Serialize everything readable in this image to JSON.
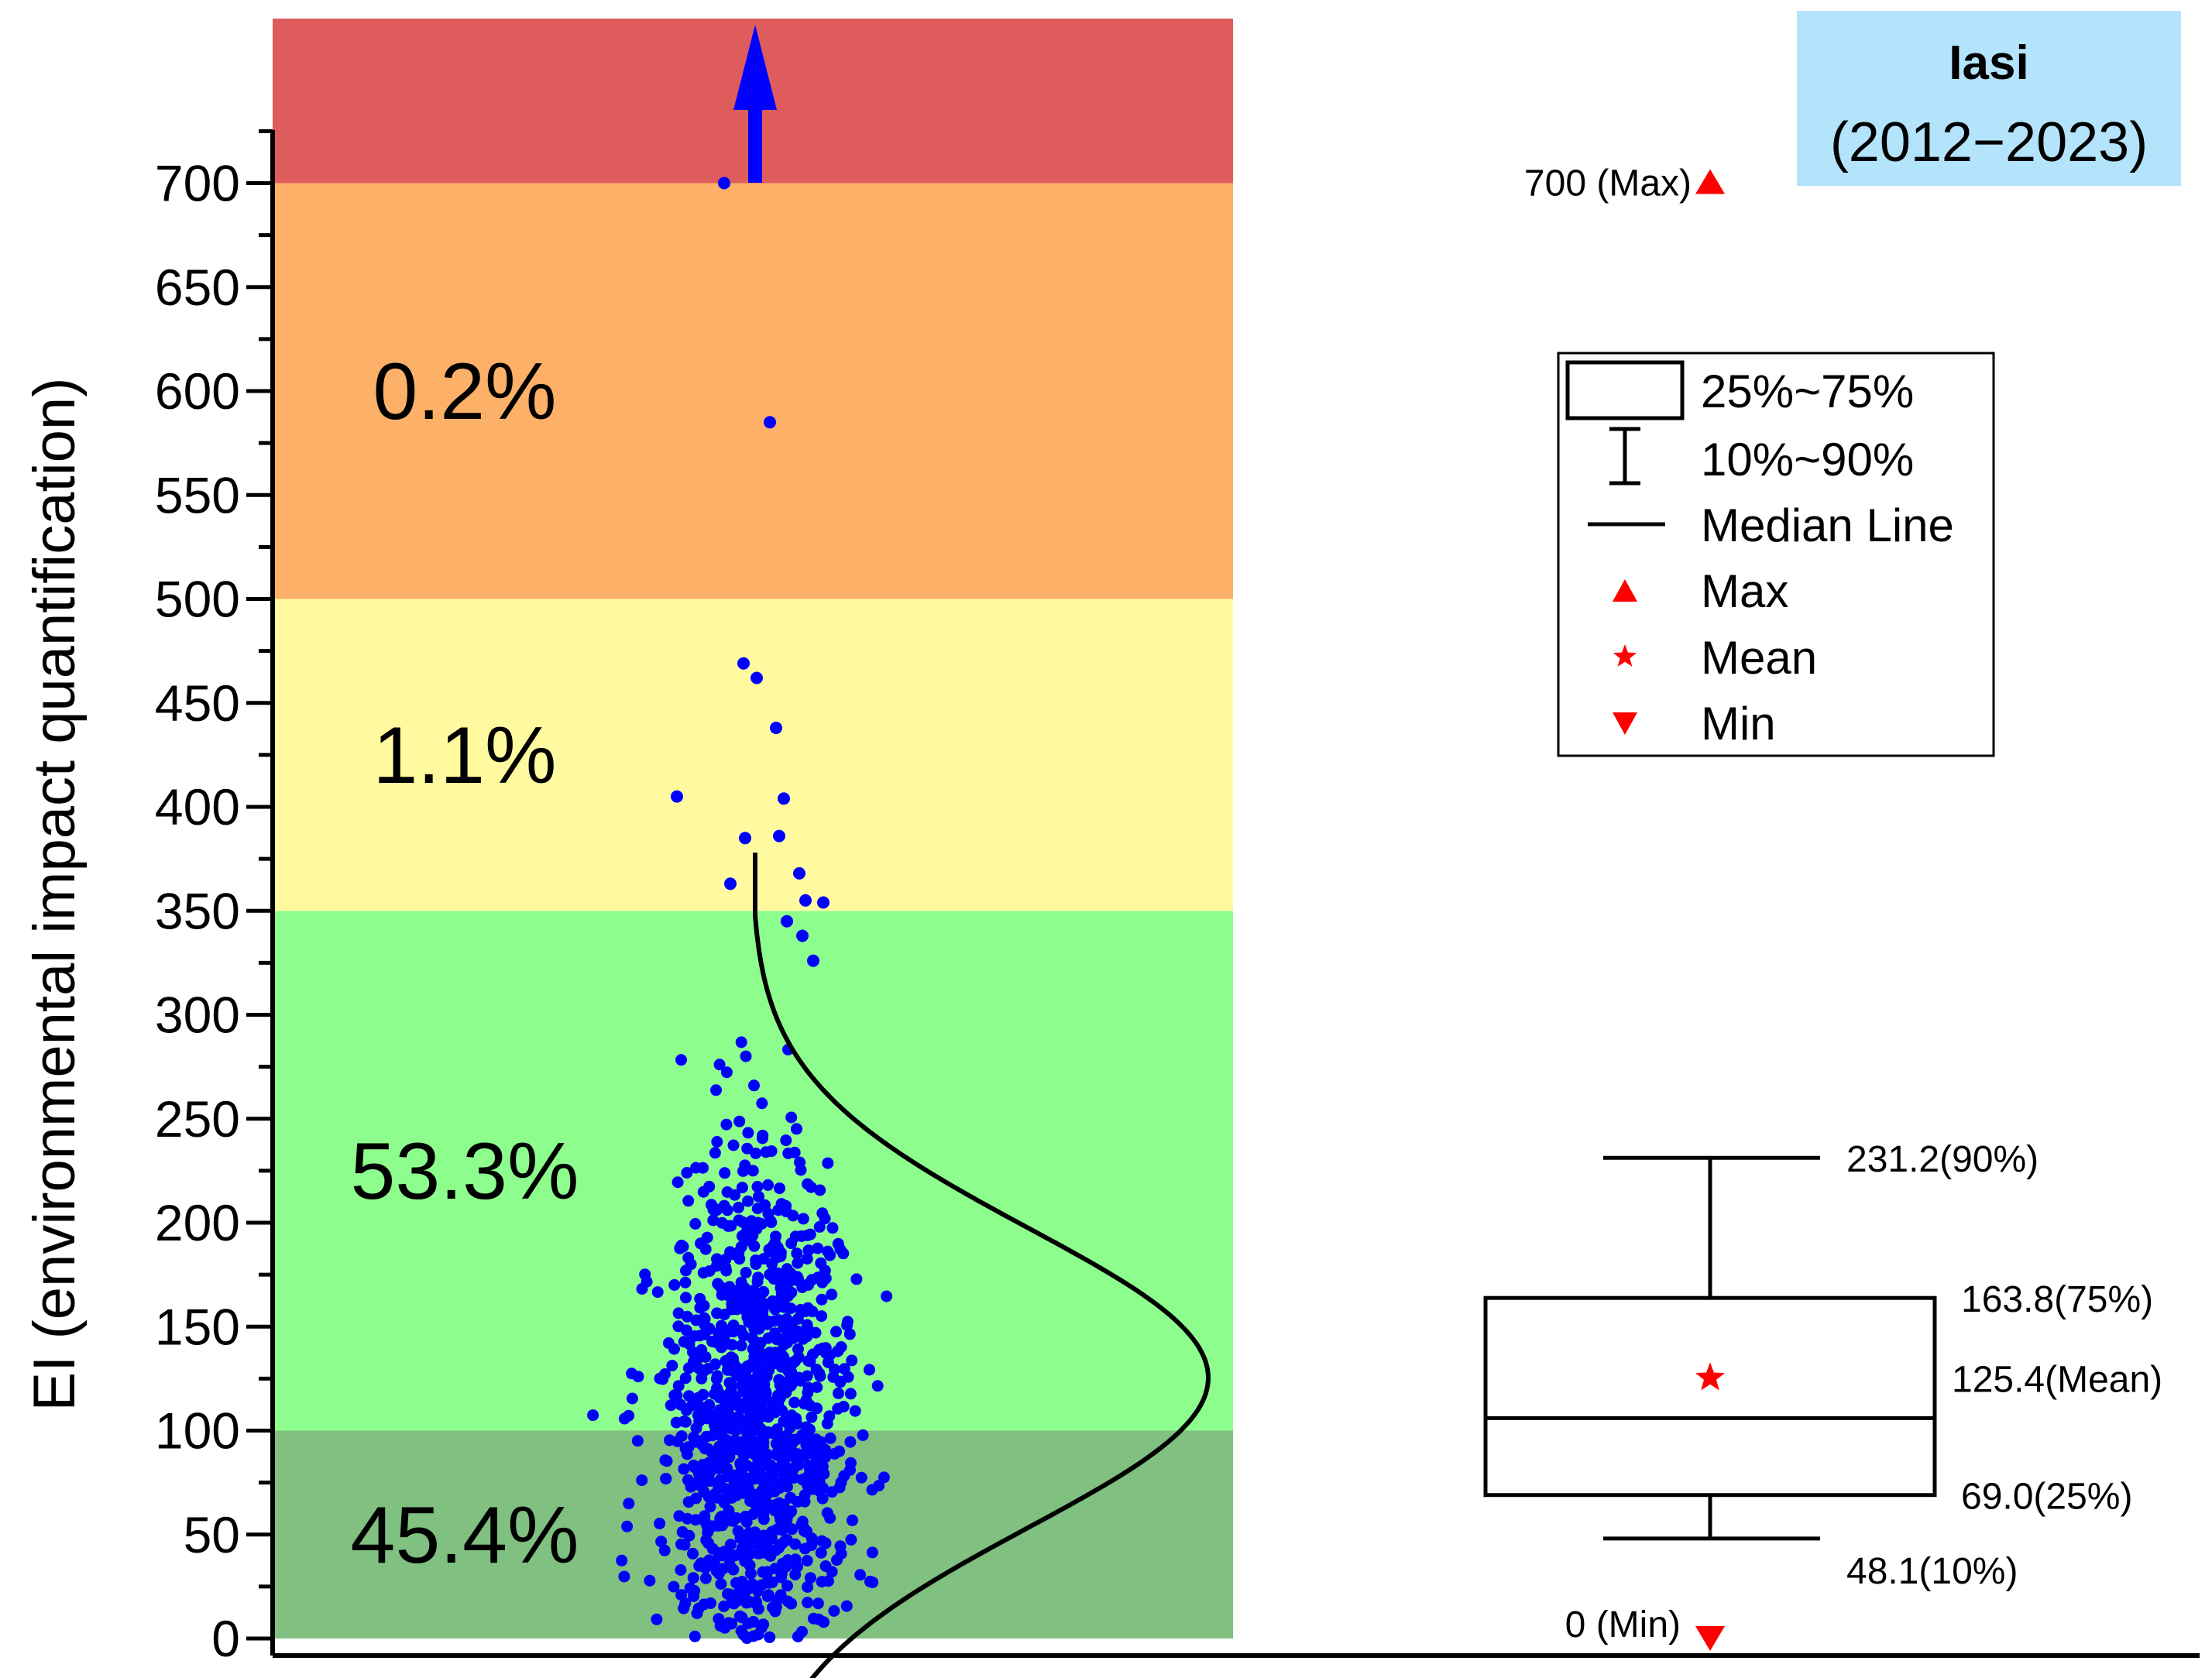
{
  "chart_data": {
    "type": "scatter",
    "ylabel": "EI (environmental impact quantification)",
    "ylim": [
      0,
      750
    ],
    "yticks": [
      0,
      50,
      100,
      150,
      200,
      250,
      300,
      350,
      400,
      450,
      500,
      550,
      600,
      650,
      700
    ],
    "title": "Iasi",
    "subtitle": "(2012−2023)",
    "bands": [
      {
        "from": 0,
        "to": 100,
        "label": "45.4%",
        "color": "#80c080"
      },
      {
        "from": 100,
        "to": 350,
        "label": "53.3%",
        "color": "#8dfd8d"
      },
      {
        "from": 350,
        "to": 500,
        "label": "1.1%",
        "color": "#fffaa0"
      },
      {
        "from": 500,
        "to": 700,
        "label": "0.2%",
        "color": "#fdb068"
      },
      {
        "from": 700,
        "to": 780,
        "label": "",
        "color": "#df5c5c"
      }
    ],
    "distribution": {
      "mean": 125.4,
      "sd": 62,
      "n": 1100
    },
    "outliers": [
      700,
      585,
      469,
      462,
      438,
      405,
      404,
      386,
      385,
      368,
      363,
      355,
      354,
      345,
      338,
      326
    ],
    "box": {
      "p10": 48.1,
      "p25": 69.0,
      "median": 106,
      "mean": 125.4,
      "p75": 163.8,
      "p90": 231.2,
      "max": 700,
      "min": 0
    },
    "annotations": {
      "max": "700 (Max)",
      "min": "0 (Min)",
      "p90": "231.2(90%)",
      "p75": "163.8(75%)",
      "mean": "125.4(Mean)",
      "p25": "69.0(25%)",
      "p10": "48.1(10%)"
    },
    "legend": {
      "items": [
        "25%~75%",
        "10%~90%",
        "Median Line",
        "Max",
        "Mean",
        "Min"
      ],
      "placement": "top-right"
    },
    "colors": {
      "points": "#0000ff",
      "markers": "#ff0000",
      "title_box": "#b4e3fc",
      "arrow": "#0000ff"
    }
  }
}
